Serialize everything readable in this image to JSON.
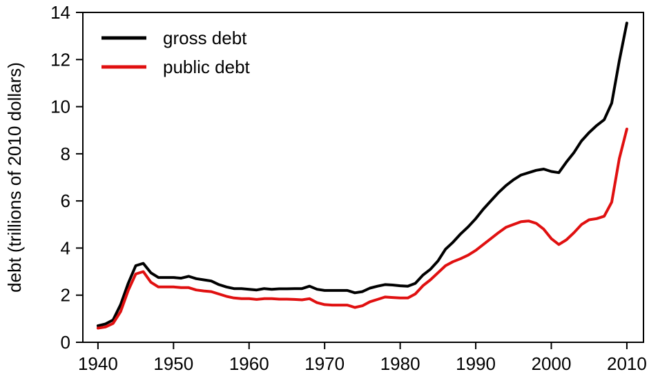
{
  "chart_data": {
    "type": "line",
    "title": "",
    "xlabel": "",
    "ylabel": "debt (trillions of 2010 dollars)",
    "xlim": [
      1938,
      2012.2
    ],
    "ylim": [
      0,
      14
    ],
    "x_ticks": [
      1940,
      1950,
      1960,
      1970,
      1980,
      1990,
      2000,
      2010
    ],
    "y_ticks": [
      0,
      2,
      4,
      6,
      8,
      10,
      12,
      14
    ],
    "grid": false,
    "legend_position": "top-left",
    "x": [
      1940,
      1941,
      1942,
      1943,
      1944,
      1945,
      1946,
      1947,
      1948,
      1949,
      1950,
      1951,
      1952,
      1953,
      1954,
      1955,
      1956,
      1957,
      1958,
      1959,
      1960,
      1961,
      1962,
      1963,
      1964,
      1965,
      1966,
      1967,
      1968,
      1969,
      1970,
      1971,
      1972,
      1973,
      1974,
      1975,
      1976,
      1977,
      1978,
      1979,
      1980,
      1981,
      1982,
      1983,
      1984,
      1985,
      1986,
      1987,
      1988,
      1989,
      1990,
      1991,
      1992,
      1993,
      1994,
      1995,
      1996,
      1997,
      1998,
      1999,
      2000,
      2001,
      2002,
      2003,
      2004,
      2005,
      2006,
      2007,
      2008,
      2009,
      2010
    ],
    "series": [
      {
        "name": "gross debt",
        "color": "#000000",
        "values": [
          0.7,
          0.78,
          0.95,
          1.6,
          2.5,
          3.25,
          3.35,
          2.95,
          2.75,
          2.75,
          2.75,
          2.72,
          2.8,
          2.7,
          2.65,
          2.6,
          2.45,
          2.35,
          2.28,
          2.28,
          2.25,
          2.22,
          2.28,
          2.25,
          2.27,
          2.27,
          2.28,
          2.28,
          2.38,
          2.25,
          2.2,
          2.2,
          2.2,
          2.2,
          2.1,
          2.15,
          2.3,
          2.38,
          2.45,
          2.43,
          2.4,
          2.38,
          2.5,
          2.85,
          3.1,
          3.45,
          3.95,
          4.25,
          4.6,
          4.9,
          5.25,
          5.65,
          6.0,
          6.35,
          6.65,
          6.9,
          7.1,
          7.2,
          7.3,
          7.35,
          7.25,
          7.2,
          7.65,
          8.05,
          8.55,
          8.9,
          9.2,
          9.45,
          10.15,
          11.95,
          13.55
        ]
      },
      {
        "name": "public debt",
        "color": "#e01010",
        "values": [
          0.6,
          0.65,
          0.8,
          1.3,
          2.2,
          2.9,
          3.0,
          2.55,
          2.35,
          2.35,
          2.35,
          2.32,
          2.32,
          2.22,
          2.18,
          2.15,
          2.05,
          1.95,
          1.88,
          1.85,
          1.85,
          1.82,
          1.85,
          1.85,
          1.83,
          1.83,
          1.82,
          1.8,
          1.85,
          1.68,
          1.6,
          1.58,
          1.58,
          1.58,
          1.48,
          1.55,
          1.72,
          1.82,
          1.92,
          1.9,
          1.88,
          1.88,
          2.05,
          2.4,
          2.65,
          2.95,
          3.25,
          3.42,
          3.55,
          3.7,
          3.9,
          4.15,
          4.4,
          4.65,
          4.88,
          5.0,
          5.12,
          5.15,
          5.05,
          4.8,
          4.4,
          4.15,
          4.35,
          4.65,
          5.0,
          5.2,
          5.25,
          5.35,
          5.95,
          7.8,
          9.05
        ]
      }
    ]
  }
}
